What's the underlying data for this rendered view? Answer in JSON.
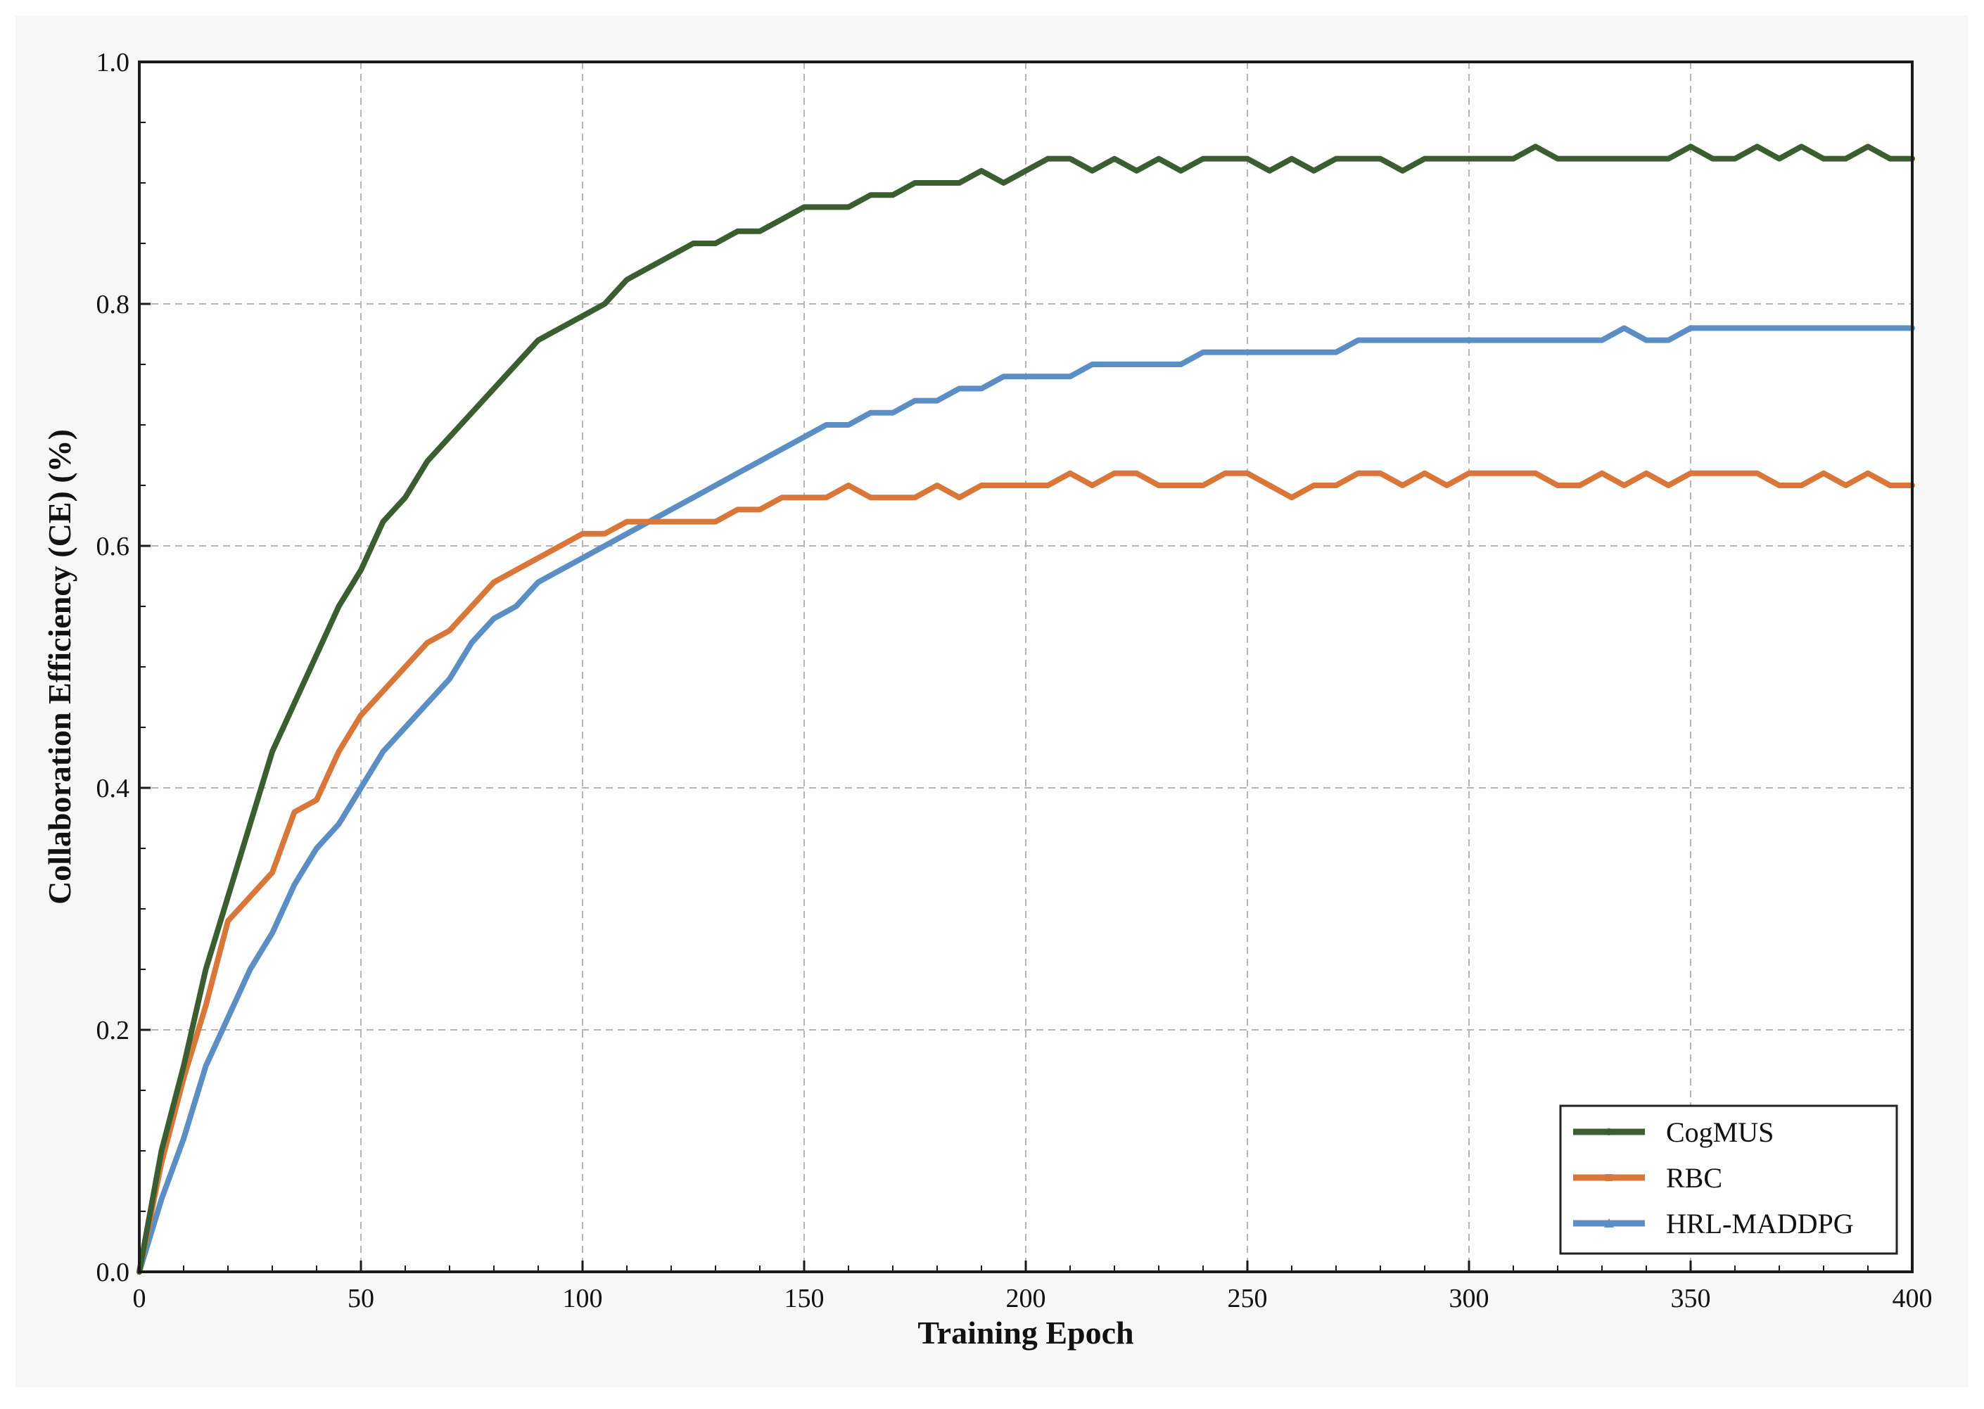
{
  "chart_data": {
    "type": "line",
    "title": "",
    "xlabel": "Training Epoch",
    "ylabel": "Collaboration Efficiency (CE) (%)",
    "xlim": [
      0,
      400
    ],
    "ylim": [
      0.0,
      1.0
    ],
    "xticks": [
      "0",
      "50",
      "100",
      "150",
      "200",
      "250",
      "300",
      "350",
      "400"
    ],
    "yticks": [
      "0.0",
      "0.2",
      "0.4",
      "0.6",
      "0.8",
      "1.0"
    ],
    "grid": true,
    "legend_position": "lower-right",
    "x": [
      0,
      5,
      10,
      15,
      20,
      25,
      30,
      35,
      40,
      45,
      50,
      55,
      60,
      65,
      70,
      75,
      80,
      85,
      90,
      95,
      100,
      105,
      110,
      115,
      120,
      125,
      130,
      135,
      140,
      145,
      150,
      155,
      160,
      165,
      170,
      175,
      180,
      185,
      190,
      195,
      200,
      205,
      210,
      215,
      220,
      225,
      230,
      235,
      240,
      245,
      250,
      255,
      260,
      265,
      270,
      275,
      280,
      285,
      290,
      295,
      300,
      305,
      310,
      315,
      320,
      325,
      330,
      335,
      340,
      345,
      350,
      355,
      360,
      365,
      370,
      375,
      380,
      385,
      390,
      395,
      400
    ],
    "series": [
      {
        "name": "CogMUS",
        "color": "#3b5e31",
        "marker": "circle",
        "values": [
          0.0,
          0.1,
          0.17,
          0.25,
          0.31,
          0.37,
          0.43,
          0.47,
          0.51,
          0.55,
          0.58,
          0.62,
          0.64,
          0.67,
          0.69,
          0.71,
          0.73,
          0.75,
          0.77,
          0.78,
          0.79,
          0.8,
          0.82,
          0.83,
          0.84,
          0.85,
          0.85,
          0.86,
          0.86,
          0.87,
          0.88,
          0.88,
          0.88,
          0.89,
          0.89,
          0.9,
          0.9,
          0.9,
          0.91,
          0.9,
          0.91,
          0.92,
          0.92,
          0.91,
          0.92,
          0.91,
          0.92,
          0.91,
          0.92,
          0.92,
          0.92,
          0.91,
          0.92,
          0.91,
          0.92,
          0.92,
          0.92,
          0.91,
          0.92,
          0.92,
          0.92,
          0.92,
          0.92,
          0.93,
          0.92,
          0.92,
          0.92,
          0.92,
          0.92,
          0.92,
          0.93,
          0.92,
          0.92,
          0.93,
          0.92,
          0.93,
          0.92,
          0.92,
          0.93,
          0.92,
          0.92
        ]
      },
      {
        "name": "RBC",
        "color": "#d9773a",
        "marker": "square",
        "values": [
          0.0,
          0.09,
          0.16,
          0.22,
          0.29,
          0.31,
          0.33,
          0.38,
          0.39,
          0.43,
          0.46,
          0.48,
          0.5,
          0.52,
          0.53,
          0.55,
          0.57,
          0.58,
          0.59,
          0.6,
          0.61,
          0.61,
          0.62,
          0.62,
          0.62,
          0.62,
          0.62,
          0.63,
          0.63,
          0.64,
          0.64,
          0.64,
          0.65,
          0.64,
          0.64,
          0.64,
          0.65,
          0.64,
          0.65,
          0.65,
          0.65,
          0.65,
          0.66,
          0.65,
          0.66,
          0.66,
          0.65,
          0.65,
          0.65,
          0.66,
          0.66,
          0.65,
          0.64,
          0.65,
          0.65,
          0.66,
          0.66,
          0.65,
          0.66,
          0.65,
          0.66,
          0.66,
          0.66,
          0.66,
          0.65,
          0.65,
          0.66,
          0.65,
          0.66,
          0.65,
          0.66,
          0.66,
          0.66,
          0.66,
          0.65,
          0.65,
          0.66,
          0.65,
          0.66,
          0.65,
          0.65
        ]
      },
      {
        "name": "HRL-MADDPG",
        "color": "#5b8fc4",
        "marker": "triangle",
        "values": [
          0.0,
          0.06,
          0.11,
          0.17,
          0.21,
          0.25,
          0.28,
          0.32,
          0.35,
          0.37,
          0.4,
          0.43,
          0.45,
          0.47,
          0.49,
          0.52,
          0.54,
          0.55,
          0.57,
          0.58,
          0.59,
          0.6,
          0.61,
          0.62,
          0.63,
          0.64,
          0.65,
          0.66,
          0.67,
          0.68,
          0.69,
          0.7,
          0.7,
          0.71,
          0.71,
          0.72,
          0.72,
          0.73,
          0.73,
          0.74,
          0.74,
          0.74,
          0.74,
          0.75,
          0.75,
          0.75,
          0.75,
          0.75,
          0.76,
          0.76,
          0.76,
          0.76,
          0.76,
          0.76,
          0.76,
          0.77,
          0.77,
          0.77,
          0.77,
          0.77,
          0.77,
          0.77,
          0.77,
          0.77,
          0.77,
          0.77,
          0.77,
          0.78,
          0.77,
          0.77,
          0.78,
          0.78,
          0.78,
          0.78,
          0.78,
          0.78,
          0.78,
          0.78,
          0.78,
          0.78,
          0.78
        ]
      }
    ]
  },
  "colors": {
    "page_background": "#f7f7f7",
    "plot_background": "#ffffff",
    "grid": "#b5b5b5",
    "axis": "#1a1a1a"
  }
}
